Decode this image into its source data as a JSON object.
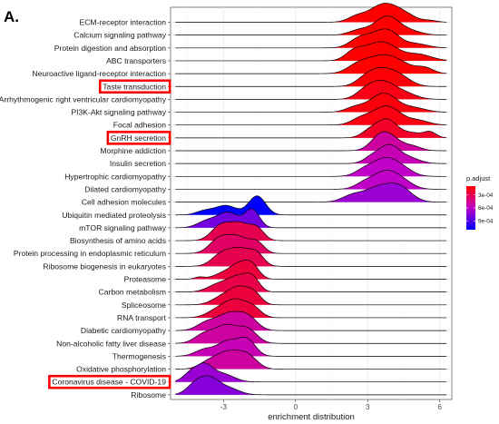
{
  "chart_data": {
    "type": "ridgeline",
    "panel_label": "A.",
    "xlabel": "enrichment distribution",
    "x_ticks": [
      -3,
      0,
      3,
      6
    ],
    "xlim": [
      -5.2,
      6.5
    ],
    "legend": {
      "title": "p.adjust",
      "position": "right",
      "ticks": [
        "3e-04",
        "6e-04",
        "9e-04"
      ],
      "range": [
        0.0001,
        0.0011
      ],
      "low_color": "#ff0000",
      "mid_color": "#c000c8",
      "high_color": "#0000ff"
    },
    "highlight_color": "#ff0000",
    "pathways": [
      {
        "name": "ECM-receptor interaction",
        "p_adjust": 0.0001,
        "peaks": [
          [
            2.5,
            0.35,
            0.3
          ],
          [
            3.3,
            0.6,
            0.45
          ],
          [
            3.8,
            0.55,
            1.0
          ],
          [
            4.6,
            0.45,
            0.4
          ],
          [
            5.6,
            0.3,
            0.12
          ]
        ],
        "highlight": false
      },
      {
        "name": "Calcium signaling pathway",
        "p_adjust": 0.0001,
        "peaks": [
          [
            2.6,
            0.4,
            0.3
          ],
          [
            3.5,
            0.5,
            0.5
          ],
          [
            3.9,
            0.45,
            0.85
          ],
          [
            4.7,
            0.5,
            0.3
          ]
        ],
        "highlight": false
      },
      {
        "name": "Protein digestion and absorption",
        "p_adjust": 0.0001,
        "peaks": [
          [
            2.6,
            0.4,
            0.4
          ],
          [
            3.3,
            0.55,
            0.6
          ],
          [
            3.9,
            0.45,
            0.75
          ],
          [
            5.0,
            0.5,
            0.25
          ]
        ],
        "highlight": false
      },
      {
        "name": "ABC transporters",
        "p_adjust": 0.0001,
        "peaks": [
          [
            2.4,
            0.35,
            0.35
          ],
          [
            3.2,
            0.55,
            0.6
          ],
          [
            3.9,
            0.5,
            0.5
          ],
          [
            5.1,
            0.55,
            0.3
          ]
        ],
        "highlight": false
      },
      {
        "name": "Neuroactive ligand-receptor interaction",
        "p_adjust": 0.0001,
        "peaks": [
          [
            2.6,
            0.45,
            0.35
          ],
          [
            3.5,
            0.55,
            0.55
          ],
          [
            4.3,
            0.6,
            0.4
          ],
          [
            5.4,
            0.35,
            0.2
          ]
        ],
        "highlight": false
      },
      {
        "name": "Taste transduction",
        "p_adjust": 0.00012,
        "peaks": [
          [
            2.9,
            0.4,
            0.3
          ],
          [
            3.6,
            0.5,
            0.7
          ],
          [
            4.4,
            0.45,
            0.35
          ]
        ],
        "highlight": true
      },
      {
        "name": "Arrhythmogenic right ventricular cardiomyopathy",
        "p_adjust": 0.00015,
        "peaks": [
          [
            2.9,
            0.4,
            0.35
          ],
          [
            3.6,
            0.5,
            0.8
          ],
          [
            4.5,
            0.5,
            0.3
          ]
        ],
        "highlight": false
      },
      {
        "name": "PI3K-Akt signaling pathway",
        "p_adjust": 0.00013,
        "peaks": [
          [
            2.5,
            0.4,
            0.35
          ],
          [
            3.4,
            0.45,
            0.7
          ],
          [
            3.9,
            0.45,
            0.75
          ],
          [
            4.9,
            0.5,
            0.3
          ]
        ],
        "highlight": false
      },
      {
        "name": "Focal adhesion",
        "p_adjust": 0.00014,
        "peaks": [
          [
            2.7,
            0.4,
            0.4
          ],
          [
            3.5,
            0.5,
            0.65
          ],
          [
            4.0,
            0.5,
            0.8
          ],
          [
            5.1,
            0.45,
            0.3
          ]
        ],
        "highlight": false
      },
      {
        "name": "GnRH secretion",
        "p_adjust": 0.0002,
        "peaks": [
          [
            3.1,
            0.35,
            0.35
          ],
          [
            3.8,
            0.4,
            0.85
          ],
          [
            4.8,
            0.5,
            0.25
          ],
          [
            5.6,
            0.25,
            0.25
          ]
        ],
        "highlight": true
      },
      {
        "name": "Morphine addiction",
        "p_adjust": 0.0005,
        "peaks": [
          [
            3.5,
            0.4,
            0.6
          ],
          [
            4.0,
            0.45,
            0.55
          ],
          [
            4.9,
            0.35,
            0.2
          ]
        ],
        "highlight": false
      },
      {
        "name": "Insulin secretion",
        "p_adjust": 0.00055,
        "peaks": [
          [
            3.2,
            0.35,
            0.35
          ],
          [
            3.9,
            0.4,
            0.9
          ],
          [
            4.7,
            0.45,
            0.3
          ]
        ],
        "highlight": false
      },
      {
        "name": "Hypertrophic cardiomyopathy",
        "p_adjust": 0.0006,
        "peaks": [
          [
            2.9,
            0.4,
            0.35
          ],
          [
            3.7,
            0.45,
            0.75
          ],
          [
            4.4,
            0.45,
            0.4
          ]
        ],
        "highlight": false
      },
      {
        "name": "Dilated cardiomyopathy",
        "p_adjust": 0.0006,
        "peaks": [
          [
            2.9,
            0.4,
            0.35
          ],
          [
            3.7,
            0.45,
            0.8
          ],
          [
            4.4,
            0.45,
            0.45
          ]
        ],
        "highlight": false
      },
      {
        "name": "Cell adhesion molecules",
        "p_adjust": 0.0007,
        "peaks": [
          [
            2.4,
            0.45,
            0.3
          ],
          [
            3.4,
            0.5,
            0.55
          ],
          [
            4.3,
            0.5,
            0.65
          ]
        ],
        "highlight": false
      },
      {
        "name": "Ubiquitin mediated proteolysis",
        "p_adjust": 0.0011,
        "peaks": [
          [
            -3.8,
            0.35,
            0.2
          ],
          [
            -2.9,
            0.45,
            0.5
          ],
          [
            -1.6,
            0.35,
            1.0
          ]
        ],
        "highlight": false
      },
      {
        "name": "mTOR signaling pathway",
        "p_adjust": 0.0008,
        "peaks": [
          [
            -3.7,
            0.4,
            0.25
          ],
          [
            -2.8,
            0.45,
            0.6
          ],
          [
            -1.8,
            0.3,
            0.7
          ]
        ],
        "highlight": false
      },
      {
        "name": "Biosynthesis of amino acids",
        "p_adjust": 0.0003,
        "peaks": [
          [
            -3.1,
            0.4,
            0.8
          ],
          [
            -2.3,
            0.4,
            0.85
          ],
          [
            -1.6,
            0.3,
            0.6
          ]
        ],
        "highlight": false
      },
      {
        "name": "Protein processing in endoplasmic reticulum",
        "p_adjust": 0.00035,
        "peaks": [
          [
            -3.2,
            0.4,
            0.75
          ],
          [
            -2.4,
            0.45,
            0.9
          ],
          [
            -1.6,
            0.3,
            0.55
          ]
        ],
        "highlight": false
      },
      {
        "name": "Ribosome biogenesis in eukaryotes",
        "p_adjust": 0.0003,
        "peaks": [
          [
            -3.1,
            0.4,
            0.6
          ],
          [
            -2.3,
            0.45,
            0.9
          ],
          [
            -1.6,
            0.3,
            0.55
          ]
        ],
        "highlight": false
      },
      {
        "name": "Proteasome",
        "p_adjust": 0.00025,
        "peaks": [
          [
            -4.0,
            0.2,
            0.15
          ],
          [
            -2.9,
            0.45,
            0.5
          ],
          [
            -2.3,
            0.35,
            0.9
          ],
          [
            -1.8,
            0.3,
            0.9
          ]
        ],
        "highlight": false
      },
      {
        "name": "Carbon metabolism",
        "p_adjust": 0.00028,
        "peaks": [
          [
            -3.2,
            0.45,
            0.45
          ],
          [
            -2.4,
            0.4,
            0.8
          ],
          [
            -1.8,
            0.3,
            0.75
          ]
        ],
        "highlight": false
      },
      {
        "name": "Spliceosome",
        "p_adjust": 0.00025,
        "peaks": [
          [
            -3.0,
            0.45,
            0.5
          ],
          [
            -2.3,
            0.4,
            0.9
          ],
          [
            -1.7,
            0.3,
            0.55
          ]
        ],
        "highlight": false
      },
      {
        "name": "RNA transport",
        "p_adjust": 0.00025,
        "peaks": [
          [
            -3.2,
            0.45,
            0.45
          ],
          [
            -2.5,
            0.4,
            0.8
          ],
          [
            -1.8,
            0.35,
            0.55
          ]
        ],
        "highlight": false
      },
      {
        "name": "Diabetic cardiomyopathy",
        "p_adjust": 0.0005,
        "peaks": [
          [
            -3.7,
            0.4,
            0.35
          ],
          [
            -2.8,
            0.45,
            0.7
          ],
          [
            -2.0,
            0.4,
            0.6
          ]
        ],
        "highlight": false
      },
      {
        "name": "Non-alcoholic fatty liver disease",
        "p_adjust": 0.0005,
        "peaks": [
          [
            -3.8,
            0.4,
            0.4
          ],
          [
            -2.9,
            0.45,
            0.75
          ],
          [
            -2.0,
            0.4,
            0.6
          ]
        ],
        "highlight": false
      },
      {
        "name": "Thermogenesis",
        "p_adjust": 0.00055,
        "peaks": [
          [
            -3.8,
            0.4,
            0.3
          ],
          [
            -2.8,
            0.45,
            0.7
          ],
          [
            -2.0,
            0.35,
            0.7
          ]
        ],
        "highlight": false
      },
      {
        "name": "Oxidative phosphorylation",
        "p_adjust": 0.0005,
        "peaks": [
          [
            -3.6,
            0.4,
            0.25
          ],
          [
            -2.8,
            0.45,
            0.55
          ],
          [
            -2.0,
            0.4,
            0.45
          ]
        ],
        "highlight": false
      },
      {
        "name": "Coronavirus disease - COVID-19",
        "p_adjust": 0.0007,
        "peaks": [
          [
            -4.4,
            0.3,
            0.4
          ],
          [
            -3.8,
            0.35,
            0.85
          ],
          [
            -3.0,
            0.45,
            0.4
          ]
        ],
        "highlight": true
      },
      {
        "name": "Ribosome",
        "p_adjust": 0.00075,
        "peaks": [
          [
            -4.2,
            0.35,
            0.55
          ],
          [
            -3.6,
            0.4,
            0.95
          ],
          [
            -2.8,
            0.45,
            0.4
          ]
        ],
        "highlight": false
      }
    ]
  }
}
